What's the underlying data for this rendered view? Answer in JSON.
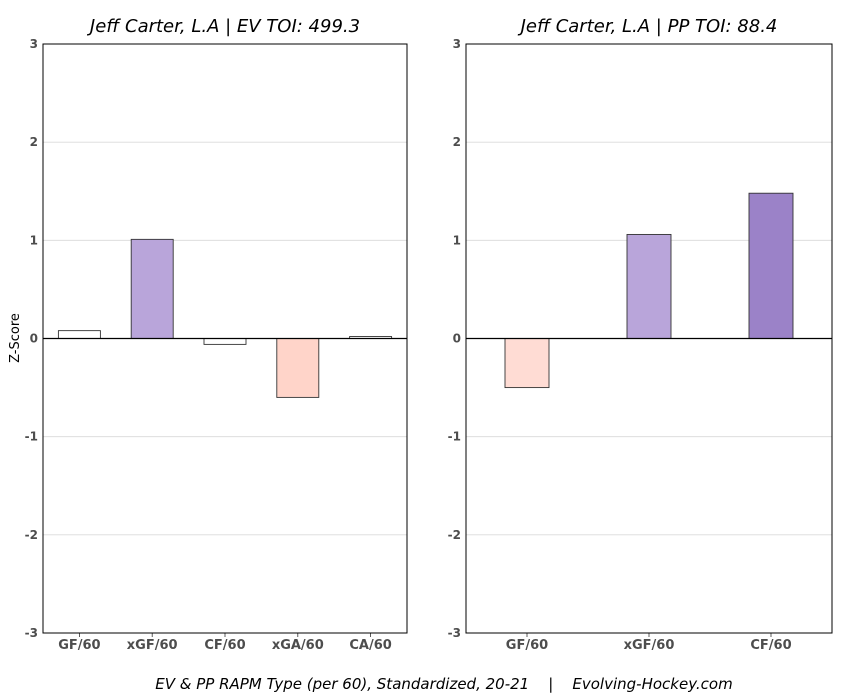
{
  "chart_data": [
    {
      "type": "bar",
      "title": "Jeff Carter, L.A  |  EV TOI: 499.3",
      "ylabel": "Z-Score",
      "ylim": [
        -3,
        3
      ],
      "yticks": [
        -3,
        -2,
        -1,
        0,
        1,
        2,
        3
      ],
      "grid": true,
      "categories": [
        "GF/60",
        "xGF/60",
        "CF/60",
        "xGA/60",
        "CA/60"
      ],
      "values": [
        0.08,
        1.01,
        -0.06,
        -0.6,
        0.02
      ],
      "colors": [
        "#ffffff",
        "#b9a5da",
        "#ffffff",
        "#ffd4c9",
        "#ffffff"
      ]
    },
    {
      "type": "bar",
      "title": "Jeff Carter, L.A  |  PP TOI: 88.4",
      "ylabel": "",
      "ylim": [
        -3,
        3
      ],
      "yticks": [
        -3,
        -2,
        -1,
        0,
        1,
        2,
        3
      ],
      "grid": true,
      "categories": [
        "GF/60",
        "xGF/60",
        "CF/60"
      ],
      "values": [
        -0.5,
        1.06,
        1.48
      ],
      "colors": [
        "#ffdcd4",
        "#b9a5da",
        "#9b82c8"
      ]
    }
  ],
  "caption": "EV & PP RAPM Type (per 60), Standardized, 20-21    |    Evolving-Hockey.com"
}
